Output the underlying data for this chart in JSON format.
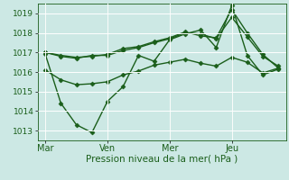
{
  "background_color": "#cce8e4",
  "grid_color": "#ffffff",
  "line_color": "#1a5e1a",
  "tick_label_color": "#1a5e1a",
  "xlabel": "Pression niveau de la mer( hPa )",
  "ylim": [
    1012.5,
    1019.5
  ],
  "yticks": [
    1013,
    1014,
    1015,
    1016,
    1017,
    1018,
    1019
  ],
  "xtick_labels": [
    "Mar",
    "Ven",
    "Mer",
    "Jeu"
  ],
  "xtick_positions": [
    0,
    4,
    8,
    12
  ],
  "vline_positions": [
    0,
    4,
    8,
    12
  ],
  "num_points": 16,
  "series": [
    [
      1017.0,
      1016.85,
      1016.75,
      1016.8,
      1016.9,
      1017.2,
      1017.3,
      1017.55,
      1017.75,
      1018.05,
      1017.85,
      1017.75,
      1019.2,
      1018.0,
      1016.9,
      1016.2
    ],
    [
      1017.0,
      1016.8,
      1016.7,
      1016.85,
      1016.85,
      1017.1,
      1017.25,
      1017.5,
      1017.7,
      1018.0,
      1017.95,
      1017.7,
      1018.8,
      1017.8,
      1016.8,
      1016.3
    ],
    [
      1016.1,
      1015.6,
      1015.35,
      1015.4,
      1015.5,
      1015.85,
      1016.05,
      1016.35,
      1016.5,
      1016.65,
      1016.45,
      1016.3,
      1016.75,
      1016.5,
      1015.95,
      1016.2
    ],
    [
      1016.9,
      1014.4,
      1013.3,
      1012.9,
      1014.5,
      1015.25,
      1016.85,
      1016.55,
      1017.65,
      1017.95,
      1018.15,
      1017.25,
      1019.4,
      1016.85,
      1015.85,
      1016.15
    ]
  ],
  "marker": "D",
  "markersize": 2.5,
  "linewidth": 1.0
}
